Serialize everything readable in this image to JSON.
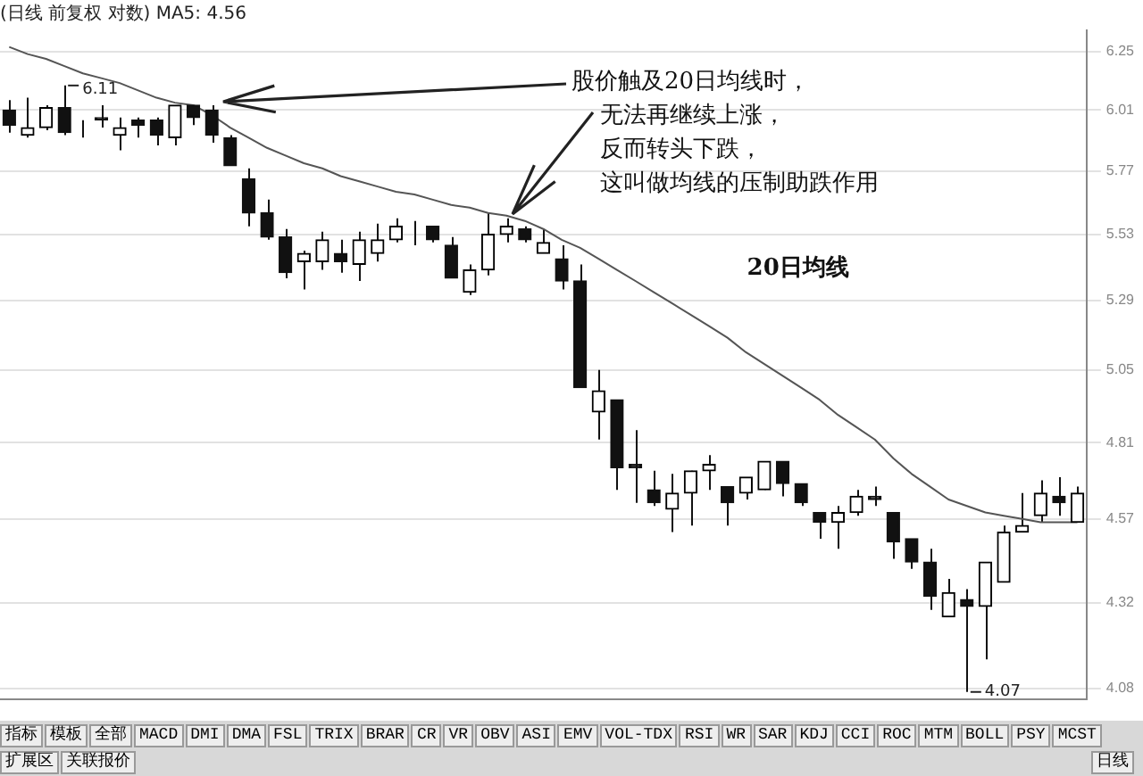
{
  "chart_data": {
    "type": "candlestick",
    "subtitle": "(日线 前复权 对数) MA5: 4.56",
    "categories": [
      null,
      null,
      null,
      null,
      null,
      null,
      null,
      null,
      null,
      null,
      null,
      null,
      null,
      null,
      null,
      null,
      null,
      null,
      null,
      null,
      null,
      null,
      null,
      null,
      null,
      null,
      null,
      null,
      null,
      null,
      null,
      null,
      null,
      null,
      null,
      null,
      null,
      null,
      null,
      null,
      null,
      null,
      null,
      null,
      null,
      null,
      null,
      null,
      null,
      null,
      null,
      null,
      null,
      null,
      null,
      null,
      null,
      null,
      null
    ],
    "ohlc": [
      [
        6.01,
        6.05,
        5.92,
        5.95
      ],
      [
        5.91,
        6.06,
        5.9,
        5.94
      ],
      [
        5.94,
        6.03,
        5.93,
        6.02
      ],
      [
        6.02,
        6.11,
        5.91,
        5.92
      ],
      [
        5.91,
        5.97,
        5.9,
        5.91
      ],
      [
        5.98,
        6.03,
        5.94,
        5.97
      ],
      [
        5.91,
        5.98,
        5.85,
        5.94
      ],
      [
        5.97,
        5.98,
        5.9,
        5.95
      ],
      [
        5.97,
        5.98,
        5.87,
        5.91
      ],
      [
        5.9,
        6.03,
        5.87,
        6.03
      ],
      [
        6.03,
        6.03,
        5.95,
        5.98
      ],
      [
        6.01,
        6.03,
        5.88,
        5.91
      ],
      [
        5.9,
        5.91,
        5.79,
        5.79
      ],
      [
        5.74,
        5.78,
        5.56,
        5.61
      ],
      [
        5.61,
        5.66,
        5.51,
        5.52
      ],
      [
        5.52,
        5.55,
        5.37,
        5.39
      ],
      [
        5.43,
        5.47,
        5.33,
        5.46
      ],
      [
        5.43,
        5.54,
        5.4,
        5.51
      ],
      [
        5.46,
        5.51,
        5.39,
        5.43
      ],
      [
        5.42,
        5.54,
        5.36,
        5.51
      ],
      [
        5.46,
        5.57,
        5.43,
        5.51
      ],
      [
        5.51,
        5.59,
        5.5,
        5.56
      ],
      [
        5.53,
        5.58,
        5.49,
        5.53
      ],
      [
        5.56,
        5.56,
        5.5,
        5.51
      ],
      [
        5.49,
        5.52,
        5.37,
        5.37
      ],
      [
        5.32,
        5.42,
        5.31,
        5.4
      ],
      [
        5.4,
        5.61,
        5.38,
        5.53
      ],
      [
        5.53,
        5.59,
        5.5,
        5.56
      ],
      [
        5.55,
        5.56,
        5.5,
        5.51
      ],
      [
        5.46,
        5.55,
        5.46,
        5.5
      ],
      [
        5.44,
        5.49,
        5.33,
        5.36
      ],
      [
        5.36,
        5.42,
        4.99,
        4.99
      ],
      [
        4.91,
        5.05,
        4.82,
        4.98
      ],
      [
        4.95,
        4.95,
        4.66,
        4.73
      ],
      [
        4.74,
        4.85,
        4.62,
        4.73
      ],
      [
        4.66,
        4.72,
        4.61,
        4.62
      ],
      [
        4.6,
        4.71,
        4.53,
        4.65
      ],
      [
        4.65,
        4.72,
        4.55,
        4.72
      ],
      [
        4.72,
        4.77,
        4.66,
        4.74
      ],
      [
        4.67,
        4.67,
        4.55,
        4.62
      ],
      [
        4.65,
        4.7,
        4.63,
        4.7
      ],
      [
        4.66,
        4.75,
        4.66,
        4.75
      ],
      [
        4.75,
        4.75,
        4.64,
        4.68
      ],
      [
        4.68,
        4.68,
        4.61,
        4.62
      ],
      [
        4.59,
        4.59,
        4.51,
        4.56
      ],
      [
        4.56,
        4.61,
        4.48,
        4.59
      ],
      [
        4.59,
        4.66,
        4.58,
        4.64
      ],
      [
        4.64,
        4.67,
        4.61,
        4.63
      ],
      [
        4.59,
        4.59,
        4.45,
        4.5
      ],
      [
        4.51,
        4.51,
        4.42,
        4.44
      ],
      [
        4.44,
        4.48,
        4.3,
        4.34
      ],
      [
        4.28,
        4.39,
        4.28,
        4.35
      ],
      [
        4.33,
        4.36,
        4.07,
        4.31
      ],
      [
        4.31,
        4.44,
        4.16,
        4.44
      ],
      [
        4.38,
        4.55,
        4.38,
        4.53
      ],
      [
        4.53,
        4.65,
        4.53,
        4.55
      ],
      [
        4.58,
        4.69,
        4.56,
        4.65
      ],
      [
        4.64,
        4.7,
        4.58,
        4.62
      ],
      [
        4.56,
        4.67,
        4.56,
        4.65
      ]
    ],
    "series": [
      {
        "name": "20日均线",
        "type": "line",
        "color": "#555555",
        "values": [
          6.27,
          6.24,
          6.22,
          6.19,
          6.16,
          6.14,
          6.12,
          6.09,
          6.06,
          6.04,
          6.03,
          5.99,
          5.94,
          5.9,
          5.86,
          5.83,
          5.8,
          5.78,
          5.75,
          5.73,
          5.71,
          5.69,
          5.68,
          5.66,
          5.64,
          5.63,
          5.61,
          5.6,
          5.58,
          5.55,
          5.51,
          5.48,
          5.44,
          5.4,
          5.36,
          5.32,
          5.28,
          5.24,
          5.2,
          5.16,
          5.11,
          5.07,
          5.03,
          4.99,
          4.95,
          4.9,
          4.86,
          4.82,
          4.76,
          4.71,
          4.67,
          4.63,
          4.61,
          4.59,
          4.58,
          4.57,
          4.56,
          4.56,
          4.56
        ]
      }
    ],
    "log": "y",
    "ylim": [
      4.05,
      6.34
    ],
    "yticks": [
      4.08,
      4.32,
      4.57,
      4.81,
      5.05,
      5.29,
      5.53,
      5.77,
      6.01,
      6.25
    ],
    "grid": "y",
    "tick_labels": "y",
    "legend": false,
    "annotations": [
      "股价触及20日均线时，无法再继续上涨，反而转头下跌，这叫做均线的压制助跌作用",
      "6.11",
      "4.07",
      "指标",
      "模板",
      "全部",
      "MACD",
      "DMI",
      "DMA",
      "FSL",
      "TRIX",
      "BRAR",
      "CR",
      "VR",
      "OBV",
      "ASI",
      "EMV",
      "VOL-TDX",
      "RSI",
      "WR",
      "SAR",
      "KDJ",
      "CCI",
      "ROC",
      "MTM",
      "BOLL",
      "PSY",
      "MCST",
      "扩展区",
      "关联报价",
      "日线"
    ]
  }
}
